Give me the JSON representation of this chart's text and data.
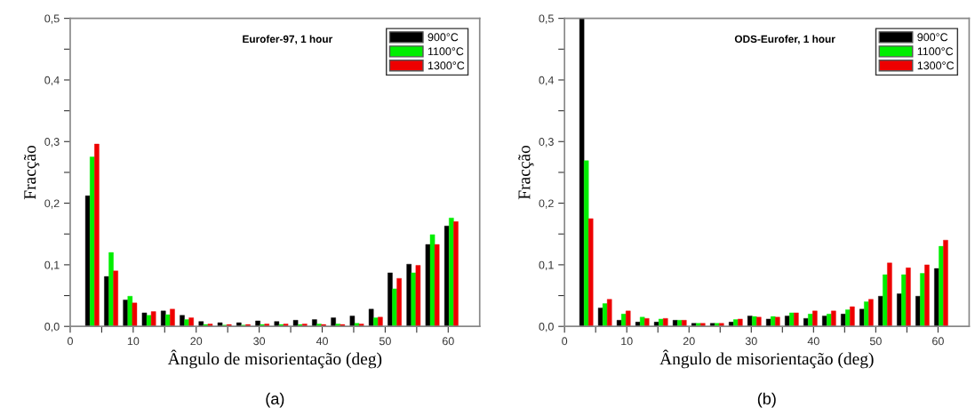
{
  "chart_data": [
    {
      "type": "bar",
      "title": "Eurofer-97, 1 hour",
      "xlabel": "Ângulo de misorientação (deg)",
      "ylabel": "Fracção",
      "annotations": [
        "(a)"
      ],
      "x": [
        3.5,
        6.5,
        9.5,
        12.5,
        15.5,
        18.5,
        21.5,
        24.5,
        27.5,
        30.5,
        33.5,
        36.5,
        39.5,
        42.5,
        45.5,
        48.5,
        51.5,
        54.5,
        57.5,
        60.5
      ],
      "series": [
        {
          "name": "900°C",
          "color": "#000000",
          "values": [
            0.212,
            0.081,
            0.043,
            0.022,
            0.025,
            0.018,
            0.008,
            0.006,
            0.006,
            0.009,
            0.008,
            0.01,
            0.011,
            0.014,
            0.017,
            0.028,
            0.087,
            0.101,
            0.133,
            0.163
          ]
        },
        {
          "name": "1100°C",
          "color": "#00ee00",
          "values": [
            0.275,
            0.12,
            0.049,
            0.018,
            0.019,
            0.011,
            0.003,
            0.002,
            0.002,
            0.003,
            0.003,
            0.003,
            0.004,
            0.004,
            0.005,
            0.014,
            0.061,
            0.087,
            0.149,
            0.176
          ]
        },
        {
          "name": "1300°C",
          "color": "#ee0000",
          "values": [
            0.296,
            0.09,
            0.038,
            0.024,
            0.028,
            0.014,
            0.004,
            0.003,
            0.003,
            0.004,
            0.004,
            0.004,
            0.003,
            0.003,
            0.004,
            0.015,
            0.078,
            0.099,
            0.133,
            0.17
          ]
        }
      ],
      "xlim": [
        0,
        65
      ],
      "ylim": [
        0,
        0.5
      ],
      "xticks": [
        0,
        {
          "value": 5,
          "label": null
        },
        10,
        {
          "value": 15,
          "label": null
        },
        20,
        {
          "value": 25,
          "label": null
        },
        30,
        {
          "value": 35,
          "label": null
        },
        40,
        {
          "value": 45,
          "label": null
        },
        50,
        {
          "value": 55,
          "label": null
        },
        60
      ],
      "yticks": [
        {
          "value": 0,
          "label": "0,0"
        },
        {
          "value": 0.05,
          "label": null
        },
        {
          "value": 0.1,
          "label": "0,1"
        },
        {
          "value": 0.15,
          "label": null
        },
        {
          "value": 0.2,
          "label": "0,2"
        },
        {
          "value": 0.25,
          "label": null
        },
        {
          "value": 0.3,
          "label": "0,3"
        },
        {
          "value": 0.35,
          "label": null
        },
        {
          "value": 0.4,
          "label": "0,4"
        },
        {
          "value": 0.45,
          "label": null
        },
        {
          "value": 0.5,
          "label": "0,5"
        }
      ],
      "legend": "top right",
      "grid": false
    },
    {
      "type": "bar",
      "title": "ODS-Eurofer, 1 hour",
      "xlabel": "Ângulo de misorientação (deg)",
      "ylabel": "Fracção",
      "annotations": [
        "(b)"
      ],
      "x": [
        3.5,
        6.5,
        9.5,
        12.5,
        15.5,
        18.5,
        21.5,
        24.5,
        27.5,
        30.5,
        33.5,
        36.5,
        39.5,
        42.5,
        45.5,
        48.5,
        51.5,
        54.5,
        57.5,
        60.5
      ],
      "series": [
        {
          "name": "900°C",
          "color": "#000000",
          "values": [
            0.5,
            0.03,
            0.01,
            0.007,
            0.007,
            0.01,
            0.005,
            0.005,
            0.007,
            0.017,
            0.012,
            0.017,
            0.013,
            0.017,
            0.02,
            0.028,
            0.049,
            0.053,
            0.049,
            0.094
          ]
        },
        {
          "name": "1100°C",
          "color": "#00ee00",
          "values": [
            0.269,
            0.037,
            0.02,
            0.015,
            0.012,
            0.01,
            0.005,
            0.005,
            0.011,
            0.016,
            0.016,
            0.022,
            0.02,
            0.02,
            0.027,
            0.04,
            0.084,
            0.084,
            0.086,
            0.13
          ]
        },
        {
          "name": "1300°C",
          "color": "#ee0000",
          "values": [
            0.175,
            0.044,
            0.025,
            0.013,
            0.013,
            0.01,
            0.005,
            0.005,
            0.012,
            0.015,
            0.015,
            0.022,
            0.025,
            0.025,
            0.032,
            0.044,
            0.103,
            0.095,
            0.1,
            0.14
          ]
        }
      ],
      "xlim": [
        0,
        65
      ],
      "ylim": [
        0,
        0.5
      ],
      "xticks": [
        0,
        {
          "value": 5,
          "label": null
        },
        10,
        {
          "value": 15,
          "label": null
        },
        20,
        {
          "value": 25,
          "label": null
        },
        30,
        {
          "value": 35,
          "label": null
        },
        40,
        {
          "value": 45,
          "label": null
        },
        50,
        {
          "value": 55,
          "label": null
        },
        60
      ],
      "yticks": [
        {
          "value": 0,
          "label": "0,0"
        },
        {
          "value": 0.05,
          "label": null
        },
        {
          "value": 0.1,
          "label": "0,1"
        },
        {
          "value": 0.15,
          "label": null
        },
        {
          "value": 0.2,
          "label": "0,2"
        },
        {
          "value": 0.25,
          "label": null
        },
        {
          "value": 0.3,
          "label": "0,3"
        },
        {
          "value": 0.35,
          "label": null
        },
        {
          "value": 0.4,
          "label": "0,4"
        },
        {
          "value": 0.45,
          "label": null
        },
        {
          "value": 0.5,
          "label": "0,5"
        }
      ],
      "legend": "top right",
      "grid": false
    }
  ]
}
